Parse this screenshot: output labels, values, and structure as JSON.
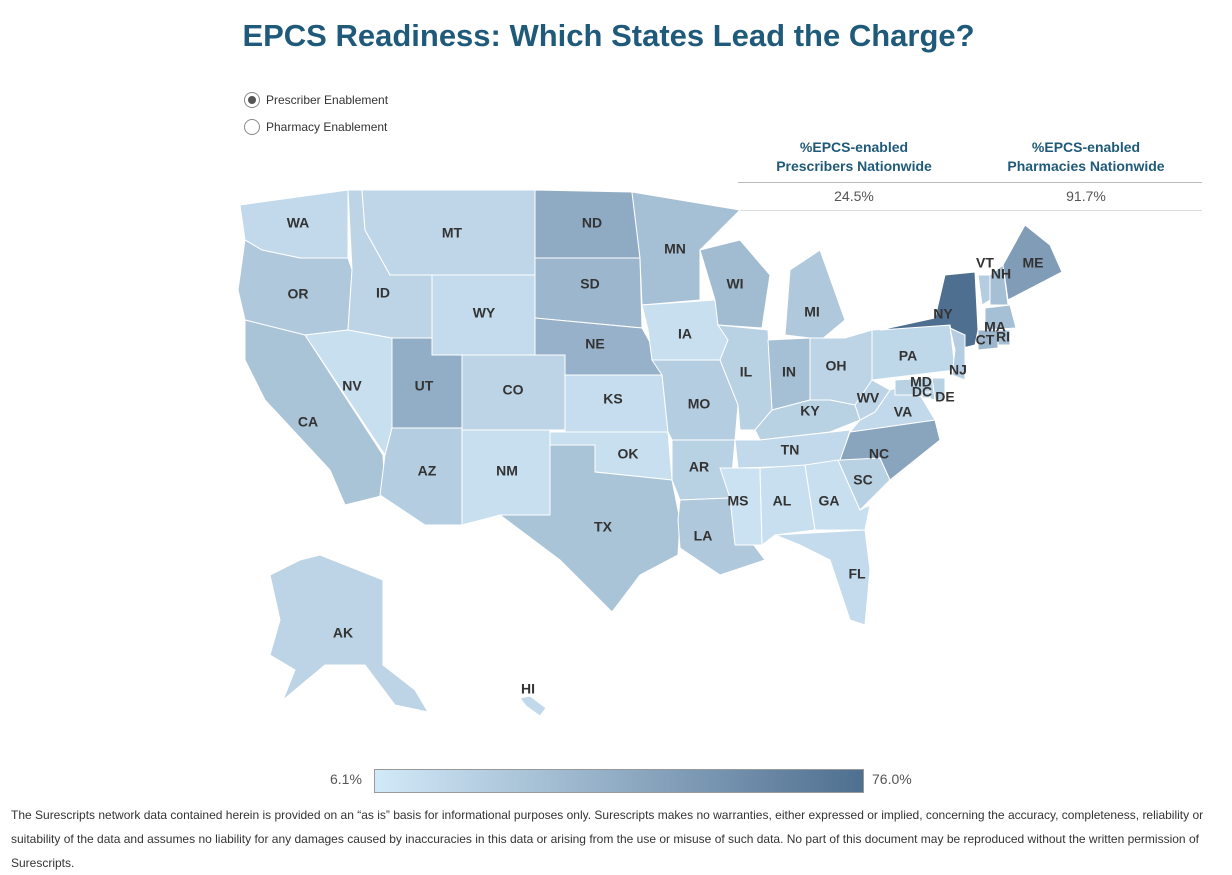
{
  "chart_data": {
    "type": "map",
    "title": "EPCS Readiness: Which States Lead the Charge?",
    "options": [
      {
        "label": "Prescriber Enablement",
        "selected": true
      },
      {
        "label": "Pharmacy Enablement",
        "selected": false
      }
    ],
    "summary": {
      "headers": [
        "%EPCS-enabled Prescribers Nationwide",
        "%EPCS-enabled Pharmacies Nationwide"
      ],
      "values": [
        "24.5%",
        "91.7%"
      ]
    },
    "color_scale": {
      "colors": [
        "#d2e9f8",
        "#4f6f90"
      ],
      "min": {
        "value": 6.1,
        "label": "6.1%"
      },
      "max": {
        "value": 76.0,
        "label": "76.0%"
      }
    },
    "states": [
      {
        "name": "WA",
        "value": 15
      },
      {
        "name": "OR",
        "value": 25
      },
      {
        "name": "CA",
        "value": 28
      },
      {
        "name": "NV",
        "value": 12
      },
      {
        "name": "ID",
        "value": 18
      },
      {
        "name": "MT",
        "value": 17
      },
      {
        "name": "WY",
        "value": 14
      },
      {
        "name": "UT",
        "value": 40
      },
      {
        "name": "AZ",
        "value": 22
      },
      {
        "name": "CO",
        "value": 18
      },
      {
        "name": "NM",
        "value": 12
      },
      {
        "name": "ND",
        "value": 42
      },
      {
        "name": "SD",
        "value": 35
      },
      {
        "name": "NE",
        "value": 38
      },
      {
        "name": "KS",
        "value": 13
      },
      {
        "name": "OK",
        "value": 12
      },
      {
        "name": "TX",
        "value": 28
      },
      {
        "name": "MN",
        "value": 30
      },
      {
        "name": "IA",
        "value": 12
      },
      {
        "name": "MO",
        "value": 22
      },
      {
        "name": "AR",
        "value": 20
      },
      {
        "name": "LA",
        "value": 25
      },
      {
        "name": "WI",
        "value": 32
      },
      {
        "name": "IL",
        "value": 20
      },
      {
        "name": "IN",
        "value": 30
      },
      {
        "name": "MI",
        "value": 25
      },
      {
        "name": "OH",
        "value": 18
      },
      {
        "name": "KY",
        "value": 20
      },
      {
        "name": "TN",
        "value": 15
      },
      {
        "name": "MS",
        "value": 10
      },
      {
        "name": "AL",
        "value": 12
      },
      {
        "name": "GA",
        "value": 12
      },
      {
        "name": "FL",
        "value": 14
      },
      {
        "name": "SC",
        "value": 20
      },
      {
        "name": "NC",
        "value": 45
      },
      {
        "name": "VA",
        "value": 15
      },
      {
        "name": "WV",
        "value": 18
      },
      {
        "name": "PA",
        "value": 16
      },
      {
        "name": "NY",
        "value": 76
      },
      {
        "name": "VT",
        "value": 22
      },
      {
        "name": "NH",
        "value": 30
      },
      {
        "name": "ME",
        "value": 50
      },
      {
        "name": "MA",
        "value": 30
      },
      {
        "name": "CT",
        "value": 35
      },
      {
        "name": "RI",
        "value": 30
      },
      {
        "name": "NJ",
        "value": 22
      },
      {
        "name": "DE",
        "value": 20
      },
      {
        "name": "MD",
        "value": 20
      },
      {
        "name": "DC",
        "value": 15
      },
      {
        "name": "AK",
        "value": 18
      },
      {
        "name": "HI",
        "value": 15
      }
    ],
    "disclaimer": "The Surescripts network data contained herein is provided on an “as is” basis for informational purposes only. Surescripts makes no warranties, either expressed or implied, concerning the accuracy, completeness, reliability or suitability of the data and assumes no liability for any damages caused by inaccuracies in this data or arising from the use or misuse of such data. No part of this document may be reproduced without the written permission of Surescripts."
  }
}
